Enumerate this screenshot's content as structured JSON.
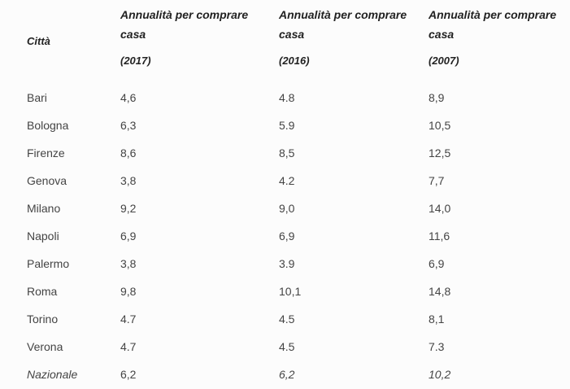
{
  "table": {
    "header": {
      "city": "Città",
      "columns": [
        {
          "title": "Annualità per comprare casa",
          "year": "(2017)"
        },
        {
          "title": "Annualità per comprare casa",
          "year": "(2016)"
        },
        {
          "title": "Annualità per comprare casa",
          "year": "(2007)"
        }
      ]
    },
    "rows": [
      [
        "Bari",
        "4,6",
        "4.8",
        "8,9"
      ],
      [
        "Bologna",
        "6,3",
        "5.9",
        "10,5"
      ],
      [
        "Firenze",
        "8,6",
        "8,5",
        "12,5"
      ],
      [
        "Genova",
        "3,8",
        "4.2",
        "7,7"
      ],
      [
        "Milano",
        "9,2",
        "9,0",
        "14,0"
      ],
      [
        "Napoli",
        "6,9",
        "6,9",
        "11,6"
      ],
      [
        "Palermo",
        "3,8",
        "3.9",
        "6,9"
      ],
      [
        "Roma",
        "9,8",
        "10,1",
        "14,8"
      ],
      [
        "Torino",
        "4.7",
        "4.5",
        "8,1"
      ],
      [
        "Verona",
        "4.7",
        "4.5",
        "7.3"
      ],
      [
        "Nazionale",
        "6,2",
        "6,2",
        "10,2"
      ]
    ]
  }
}
